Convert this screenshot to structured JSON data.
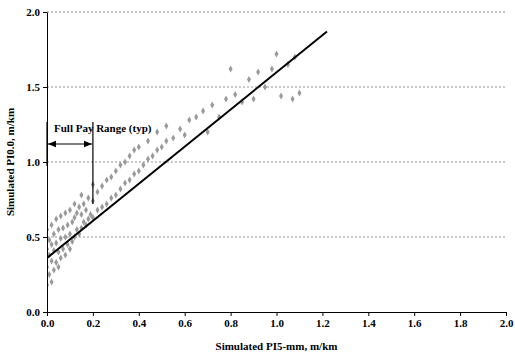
{
  "chart_data": {
    "type": "scatter",
    "x_label": "Simulated PI5-mm, m/km",
    "y_label": "Simulated PI0.0, m/km",
    "xlim": [
      0,
      2
    ],
    "ylim": [
      0,
      2
    ],
    "xticks": [
      {
        "value": 0,
        "label": "0.0"
      },
      {
        "value": 0.2,
        "label": "0.2"
      },
      {
        "value": 0.4,
        "label": "0.4"
      },
      {
        "value": 0.6,
        "label": "0.6"
      },
      {
        "value": 0.8,
        "label": "0.8"
      },
      {
        "value": 1,
        "label": "1.0"
      },
      {
        "value": 1.2,
        "label": "1.2"
      },
      {
        "value": 1.4,
        "label": "1.4"
      },
      {
        "value": 1.6,
        "label": "1.6"
      },
      {
        "value": 1.8,
        "label": "1.8"
      },
      {
        "value": 2,
        "label": "2.0"
      }
    ],
    "yticks": [
      {
        "value": 0,
        "label": "0.0"
      },
      {
        "value": 0.5,
        "label": "0.5"
      },
      {
        "value": 1,
        "label": "1.0"
      },
      {
        "value": 1.5,
        "label": "1.5"
      },
      {
        "value": 2,
        "label": "2.0"
      }
    ],
    "grid": true,
    "series": [
      {
        "type": "scatter",
        "color": "#9a9a9a",
        "marker": "diamond",
        "x": [
          0.0,
          0.0,
          0.0,
          0.0,
          0.01,
          0.01,
          0.01,
          0.02,
          0.02,
          0.02,
          0.02,
          0.03,
          0.03,
          0.03,
          0.04,
          0.04,
          0.04,
          0.05,
          0.05,
          0.05,
          0.06,
          0.06,
          0.06,
          0.07,
          0.07,
          0.08,
          0.08,
          0.08,
          0.09,
          0.09,
          0.1,
          0.1,
          0.1,
          0.11,
          0.11,
          0.12,
          0.12,
          0.12,
          0.13,
          0.13,
          0.14,
          0.14,
          0.15,
          0.15,
          0.15,
          0.16,
          0.16,
          0.17,
          0.17,
          0.18,
          0.18,
          0.19,
          0.2,
          0.2,
          0.2,
          0.22,
          0.22,
          0.24,
          0.24,
          0.26,
          0.26,
          0.28,
          0.28,
          0.3,
          0.3,
          0.32,
          0.32,
          0.34,
          0.34,
          0.36,
          0.36,
          0.38,
          0.38,
          0.4,
          0.4,
          0.42,
          0.44,
          0.44,
          0.46,
          0.48,
          0.48,
          0.5,
          0.52,
          0.52,
          0.55,
          0.58,
          0.6,
          0.62,
          0.65,
          0.68,
          0.7,
          0.72,
          0.75,
          0.78,
          0.8,
          0.82,
          0.85,
          0.88,
          0.9,
          0.92,
          0.95,
          0.98,
          1.0,
          1.02,
          1.05,
          1.07,
          1.08,
          1.1
        ],
        "values": [
          0.18,
          0.3,
          0.42,
          0.55,
          0.25,
          0.38,
          0.48,
          0.2,
          0.34,
          0.45,
          0.58,
          0.28,
          0.41,
          0.52,
          0.33,
          0.46,
          0.62,
          0.3,
          0.4,
          0.55,
          0.36,
          0.49,
          0.64,
          0.42,
          0.56,
          0.38,
          0.5,
          0.66,
          0.45,
          0.58,
          0.42,
          0.52,
          0.68,
          0.47,
          0.6,
          0.5,
          0.63,
          0.72,
          0.55,
          0.66,
          0.52,
          0.7,
          0.56,
          0.65,
          0.78,
          0.6,
          0.72,
          0.58,
          0.68,
          0.62,
          0.76,
          0.65,
          0.63,
          0.74,
          0.85,
          0.68,
          0.8,
          0.7,
          0.84,
          0.72,
          0.88,
          0.76,
          0.9,
          0.78,
          0.94,
          0.82,
          0.98,
          0.86,
          1.0,
          0.88,
          1.04,
          0.92,
          1.08,
          0.94,
          1.1,
          0.98,
          1.02,
          1.14,
          1.04,
          1.08,
          1.2,
          1.1,
          1.14,
          1.24,
          1.16,
          1.22,
          1.18,
          1.28,
          1.3,
          1.34,
          1.2,
          1.38,
          1.3,
          1.42,
          1.62,
          1.45,
          1.4,
          1.55,
          1.42,
          1.6,
          1.5,
          1.62,
          1.72,
          1.44,
          1.65,
          1.42,
          1.7,
          1.46
        ]
      },
      {
        "type": "line",
        "color": "#000000",
        "line_style": "solid",
        "x": [
          0,
          1.22
        ],
        "values": [
          0.36,
          1.87
        ]
      }
    ],
    "annotations": [
      {
        "text": "Full Pay Range (typ)",
        "x": [
          0,
          0.2
        ],
        "y": 1.12
      }
    ]
  }
}
